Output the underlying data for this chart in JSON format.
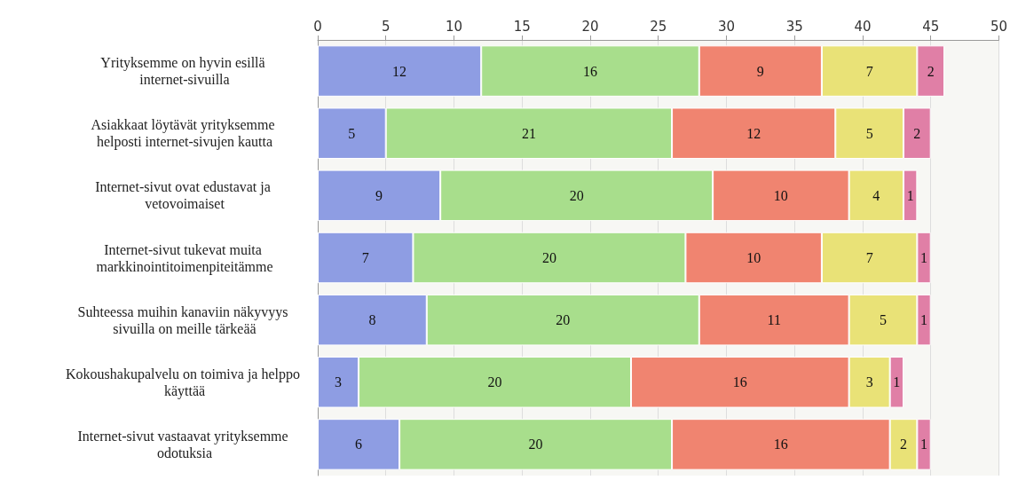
{
  "chart_data": {
    "type": "bar",
    "orientation": "horizontal",
    "stacked": true,
    "data_labels": true,
    "grid": "x",
    "categories": [
      "Yrityksemme on hyvin esillä internet-sivuilla",
      "Asiakkaat löytävät yrityksemme helposti internet-sivujen kautta",
      "Internet-sivut ovat edustavat ja vetovoimaiset",
      "Internet-sivut tukevat muita markkinointitoimenpiteitämme",
      "Suhteessa muihin kanaviin näkyvyys sivuilla on meille tärkeää",
      "Kokoushakupalvelu on toimiva ja helppo käyttää",
      "Internet-sivut vastaavat yrityksemme odotuksia"
    ],
    "series": [
      {
        "color": "#8e9de3",
        "values": [
          12,
          5,
          9,
          7,
          8,
          3,
          6
        ]
      },
      {
        "color": "#a8de8c",
        "values": [
          16,
          21,
          20,
          20,
          20,
          20,
          20
        ]
      },
      {
        "color": "#f08470",
        "values": [
          9,
          12,
          10,
          10,
          11,
          16,
          16
        ]
      },
      {
        "color": "#e9e277",
        "values": [
          7,
          5,
          4,
          7,
          5,
          3,
          2
        ]
      },
      {
        "color": "#e07fa6",
        "values": [
          2,
          2,
          1,
          1,
          1,
          1,
          1
        ]
      }
    ],
    "xlim": [
      0,
      50
    ],
    "xticks": [
      0,
      5,
      10,
      15,
      20,
      25,
      30,
      35,
      40,
      45,
      50
    ]
  }
}
